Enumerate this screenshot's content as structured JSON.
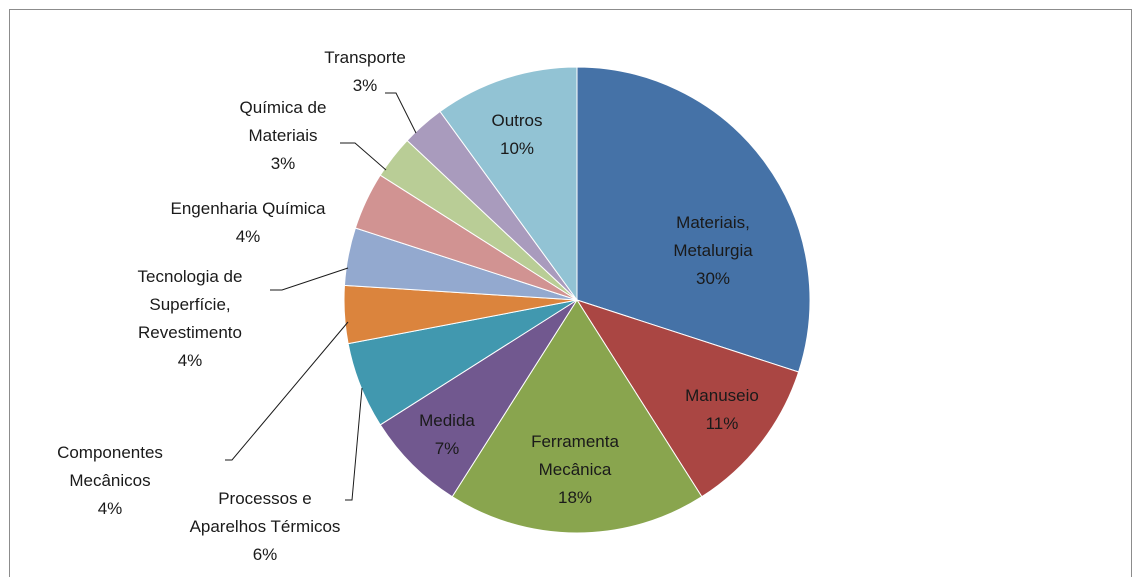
{
  "chart_data": {
    "type": "pie",
    "categories": [
      "Materiais,\nMetalurgia",
      "Manuseio",
      "Ferramenta\nMecânica",
      "Medida",
      "Processos e\nAparelhos Térmicos",
      "Componentes\nMecânicos",
      "Tecnologia de\nSuperfície,\nRevestimento",
      "Engenharia Química",
      "Química de\nMateriais",
      "Transporte",
      "Outros"
    ],
    "values": [
      30,
      11,
      18,
      7,
      6,
      4,
      4,
      4,
      3,
      3,
      10
    ],
    "value_labels": [
      "30%",
      "11%",
      "18%",
      "7%",
      "6%",
      "4%",
      "4%",
      "4%",
      "3%",
      "3%",
      "10%"
    ],
    "colors": [
      "#4572a7",
      "#aa4643",
      "#89a54e",
      "#71588f",
      "#4198af",
      "#db843d",
      "#93a9cf",
      "#d19392",
      "#b9cd96",
      "#a99bbd",
      "#92c3d4"
    ]
  }
}
